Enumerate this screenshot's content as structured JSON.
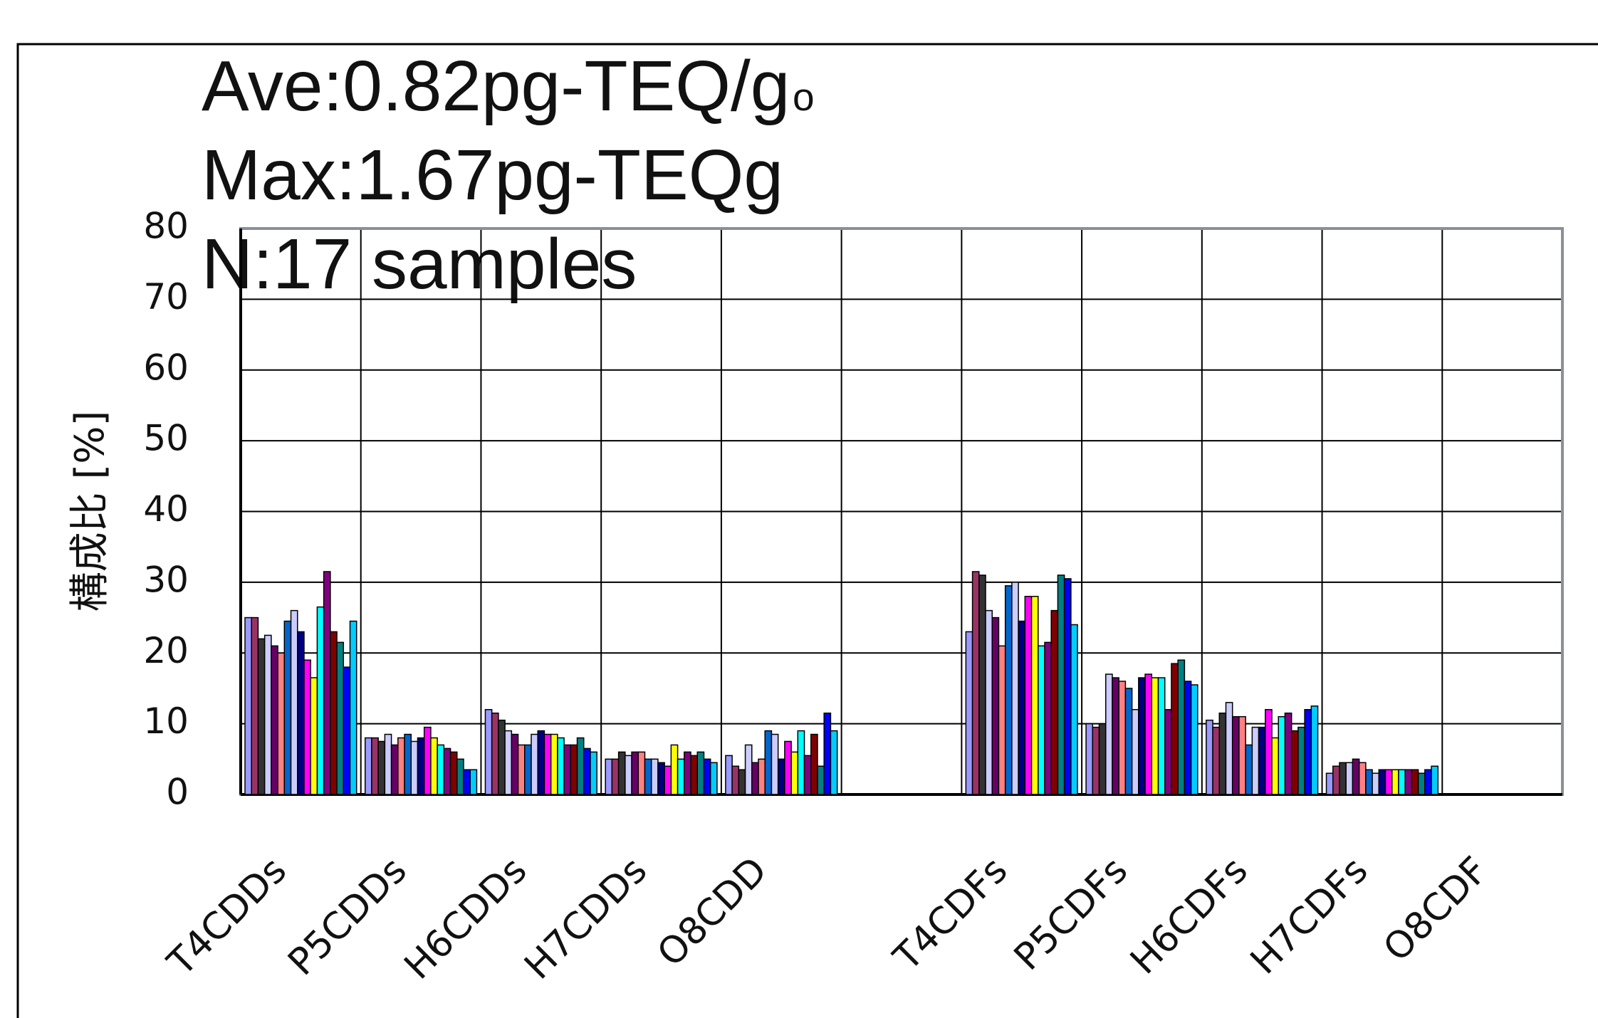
{
  "chart_data": {
    "type": "bar",
    "notes": [
      "Ave:0.82pg-TEQ/g",
      "o",
      "Max:1.67pg-TEQg",
      "N:17 samples"
    ],
    "ylabel": "構成比 [%]",
    "categories": [
      "T4CDDs",
      "P5CDDs",
      "H6CDDs",
      "H7CDDs",
      "O8CDD",
      null,
      "T4CDFs",
      "P5CDFs",
      "H6CDFs",
      "H7CDFs",
      "O8CDF"
    ],
    "ylim": [
      0,
      80
    ],
    "yticks": [
      0,
      10,
      20,
      30,
      40,
      50,
      60,
      70,
      80
    ],
    "grid": true,
    "series": [
      {
        "color": "#9999ff",
        "values": [
          25,
          8,
          12,
          5,
          5.5,
          null,
          23,
          10,
          10.5,
          3,
          null
        ]
      },
      {
        "color": "#993366",
        "values": [
          25,
          8,
          11.5,
          5,
          4,
          null,
          31.5,
          9.5,
          9.5,
          4,
          null
        ]
      },
      {
        "color": "#333333",
        "values": [
          22,
          7.5,
          10.5,
          6,
          3.5,
          null,
          31,
          10,
          11.5,
          4.5,
          null
        ]
      },
      {
        "color": "#ccccff",
        "values": [
          22.5,
          8.5,
          9,
          5.5,
          7,
          null,
          26,
          17,
          13,
          4.5,
          null
        ]
      },
      {
        "color": "#660066",
        "values": [
          21,
          7,
          8.5,
          6,
          4.5,
          null,
          25,
          16.5,
          11,
          5,
          null
        ]
      },
      {
        "color": "#ff8080",
        "values": [
          20,
          8,
          7,
          6,
          5,
          null,
          21,
          16,
          11,
          4.5,
          null
        ]
      },
      {
        "color": "#0066cc",
        "values": [
          24.5,
          8.5,
          7,
          5,
          9,
          null,
          29.5,
          15,
          7,
          3.5,
          null
        ]
      },
      {
        "color": "#ccccff",
        "values": [
          26,
          7.5,
          8.5,
          5,
          8.5,
          null,
          30,
          12,
          9.5,
          3,
          null
        ]
      },
      {
        "color": "#000080",
        "values": [
          23,
          8,
          9,
          4.5,
          5,
          null,
          24.5,
          16.5,
          9.5,
          3.5,
          null
        ]
      },
      {
        "color": "#ff00ff",
        "values": [
          19,
          9.5,
          8.5,
          4,
          7.5,
          null,
          28,
          17,
          12,
          3.5,
          null
        ]
      },
      {
        "color": "#ffff00",
        "values": [
          16.5,
          8,
          8.5,
          7,
          6,
          null,
          28,
          16.5,
          8,
          3.5,
          null
        ]
      },
      {
        "color": "#00ffff",
        "values": [
          26.5,
          7,
          8,
          5,
          9,
          null,
          21,
          16.5,
          11,
          3.5,
          null
        ]
      },
      {
        "color": "#800080",
        "values": [
          31.5,
          6.5,
          7,
          6,
          5.5,
          null,
          21.5,
          12,
          11.5,
          3.5,
          null
        ]
      },
      {
        "color": "#800000",
        "values": [
          23,
          6,
          7,
          5.5,
          8.5,
          null,
          26,
          18.5,
          9,
          3.5,
          null
        ]
      },
      {
        "color": "#008080",
        "values": [
          21.5,
          5,
          8,
          6,
          4,
          null,
          31,
          19,
          9.5,
          3,
          null
        ]
      },
      {
        "color": "#0000ff",
        "values": [
          18,
          3.5,
          6.5,
          5,
          11.5,
          null,
          30.5,
          16,
          12,
          3.5,
          null
        ]
      },
      {
        "color": "#00ccff",
        "values": [
          24.5,
          3.5,
          6,
          4.5,
          9,
          null,
          24,
          15.5,
          12.5,
          4,
          null
        ]
      }
    ]
  }
}
